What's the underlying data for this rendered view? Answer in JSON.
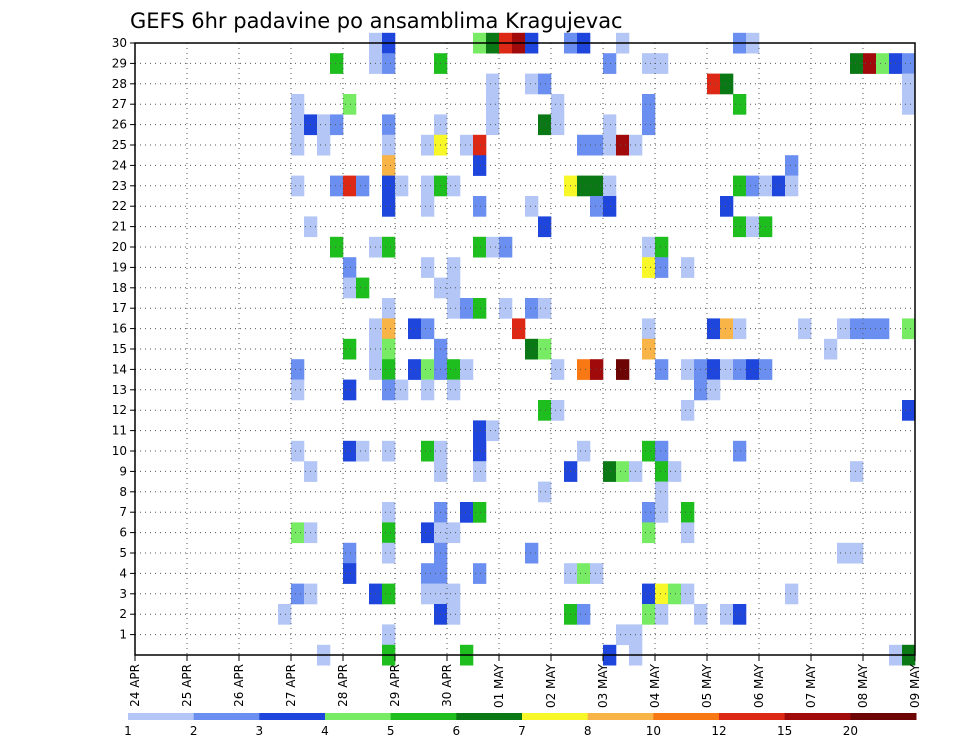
{
  "chart_data": {
    "type": "heatmap",
    "title": "GEFS 6hr padavine po ansamblima Kragujevac",
    "xlabel": "",
    "ylabel": "",
    "x_tick_labels": [
      "24 APR",
      "25 APR",
      "26 APR",
      "27 APR",
      "28 APR",
      "29 APR",
      "30 APR",
      "01 MAY",
      "02 MAY",
      "03 MAY",
      "04 MAY",
      "05 MAY",
      "06 MAY",
      "07 MAY",
      "08 MAY",
      "09 MAY"
    ],
    "y_tick_labels": [
      "1",
      "2",
      "3",
      "4",
      "5",
      "6",
      "7",
      "8",
      "9",
      "10",
      "11",
      "12",
      "13",
      "14",
      "15",
      "16",
      "17",
      "18",
      "19",
      "20",
      "21",
      "22",
      "23",
      "24",
      "25",
      "26",
      "27",
      "28",
      "29",
      "30"
    ],
    "x_range": [
      "24 APR 00Z",
      "09 MAY 00Z"
    ],
    "y_range": [
      0,
      30
    ],
    "steps_per_day": 4,
    "grid": true,
    "colorbar": {
      "position": "bottom",
      "bounds": [
        "1",
        "2",
        "3",
        "4",
        "5",
        "6",
        "7",
        "8",
        "10",
        "12",
        "15",
        "20"
      ],
      "colors": [
        "#b4c6f5",
        "#6b8ff0",
        "#1e46dc",
        "#78eb64",
        "#1ebe1e",
        "#0a7814",
        "#f8f828",
        "#f8b446",
        "#f87814",
        "#dc2814",
        "#a00a0a",
        "#6e0505"
      ]
    },
    "cells": [
      [
        30,
        18,
        "c0"
      ],
      [
        30,
        19,
        "c2"
      ],
      [
        30,
        26,
        "c3"
      ],
      [
        30,
        27,
        "c5"
      ],
      [
        30,
        28,
        "c9"
      ],
      [
        30,
        29,
        "c10"
      ],
      [
        30,
        30,
        "c2"
      ],
      [
        30,
        33,
        "c1"
      ],
      [
        30,
        34,
        "c2"
      ],
      [
        30,
        37,
        "c0"
      ],
      [
        30,
        46,
        "c1"
      ],
      [
        30,
        47,
        "c0"
      ],
      [
        29,
        18,
        "c0"
      ],
      [
        29,
        19,
        "c1"
      ],
      [
        29,
        15,
        "c4"
      ],
      [
        29,
        23,
        "c4"
      ],
      [
        29,
        36,
        "c1"
      ],
      [
        29,
        39,
        "c0"
      ],
      [
        29,
        40,
        "c0"
      ],
      [
        29,
        55,
        "c5"
      ],
      [
        29,
        56,
        "c10"
      ],
      [
        29,
        57,
        "c3"
      ],
      [
        29,
        58,
        "c2"
      ],
      [
        29,
        59,
        "c1"
      ],
      [
        28,
        27,
        "c0"
      ],
      [
        28,
        30,
        "c0"
      ],
      [
        28,
        31,
        "c1"
      ],
      [
        28,
        44,
        "c9"
      ],
      [
        28,
        45,
        "c5"
      ],
      [
        28,
        59,
        "c0"
      ],
      [
        27,
        12,
        "c0"
      ],
      [
        27,
        16,
        "c3"
      ],
      [
        27,
        27,
        "c0"
      ],
      [
        27,
        32,
        "c0"
      ],
      [
        27,
        39,
        "c1"
      ],
      [
        27,
        46,
        "c4"
      ],
      [
        27,
        59,
        "c0"
      ],
      [
        26,
        12,
        "c0"
      ],
      [
        26,
        13,
        "c2"
      ],
      [
        26,
        14,
        "c0"
      ],
      [
        26,
        15,
        "c1"
      ],
      [
        26,
        19,
        "c1"
      ],
      [
        26,
        23,
        "c0"
      ],
      [
        26,
        27,
        "c0"
      ],
      [
        26,
        31,
        "c5"
      ],
      [
        26,
        32,
        "c0"
      ],
      [
        26,
        36,
        "c0"
      ],
      [
        26,
        39,
        "c1"
      ],
      [
        25,
        12,
        "c0"
      ],
      [
        25,
        14,
        "c0"
      ],
      [
        25,
        19,
        "c0"
      ],
      [
        25,
        22,
        "c0"
      ],
      [
        25,
        23,
        "c6"
      ],
      [
        25,
        25,
        "c0"
      ],
      [
        25,
        26,
        "c9"
      ],
      [
        25,
        34,
        "c1"
      ],
      [
        25,
        35,
        "c1"
      ],
      [
        25,
        36,
        "c0"
      ],
      [
        25,
        37,
        "c10"
      ],
      [
        25,
        38,
        "c0"
      ],
      [
        24,
        19,
        "c7"
      ],
      [
        24,
        26,
        "c2"
      ],
      [
        24,
        50,
        "c1"
      ],
      [
        23,
        12,
        "c0"
      ],
      [
        23,
        15,
        "c1"
      ],
      [
        23,
        16,
        "c9"
      ],
      [
        23,
        17,
        "c1"
      ],
      [
        23,
        19,
        "c2"
      ],
      [
        23,
        20,
        "c0"
      ],
      [
        23,
        22,
        "c0"
      ],
      [
        23,
        23,
        "c4"
      ],
      [
        23,
        24,
        "c0"
      ],
      [
        23,
        33,
        "c6"
      ],
      [
        23,
        34,
        "c5"
      ],
      [
        23,
        35,
        "c5"
      ],
      [
        23,
        36,
        "c0"
      ],
      [
        23,
        46,
        "c4"
      ],
      [
        23,
        47,
        "c1"
      ],
      [
        23,
        48,
        "c0"
      ],
      [
        23,
        49,
        "c2"
      ],
      [
        23,
        50,
        "c0"
      ],
      [
        22,
        19,
        "c2"
      ],
      [
        22,
        22,
        "c0"
      ],
      [
        22,
        26,
        "c1"
      ],
      [
        22,
        30,
        "c0"
      ],
      [
        22,
        35,
        "c1"
      ],
      [
        22,
        36,
        "c2"
      ],
      [
        22,
        45,
        "c2"
      ],
      [
        21,
        13,
        "c0"
      ],
      [
        21,
        31,
        "c2"
      ],
      [
        21,
        46,
        "c4"
      ],
      [
        21,
        47,
        "c0"
      ],
      [
        21,
        48,
        "c4"
      ],
      [
        20,
        15,
        "c4"
      ],
      [
        20,
        18,
        "c0"
      ],
      [
        20,
        19,
        "c4"
      ],
      [
        20,
        26,
        "c4"
      ],
      [
        20,
        27,
        "c0"
      ],
      [
        20,
        28,
        "c1"
      ],
      [
        20,
        39,
        "c0"
      ],
      [
        20,
        40,
        "c4"
      ],
      [
        19,
        16,
        "c1"
      ],
      [
        19,
        22,
        "c0"
      ],
      [
        19,
        24,
        "c0"
      ],
      [
        19,
        39,
        "c6"
      ],
      [
        19,
        40,
        "c1"
      ],
      [
        19,
        42,
        "c0"
      ],
      [
        18,
        16,
        "c0"
      ],
      [
        18,
        17,
        "c4"
      ],
      [
        18,
        23,
        "c0"
      ],
      [
        18,
        24,
        "c0"
      ],
      [
        17,
        19,
        "c0"
      ],
      [
        17,
        24,
        "c0"
      ],
      [
        17,
        25,
        "c1"
      ],
      [
        17,
        26,
        "c4"
      ],
      [
        17,
        28,
        "c0"
      ],
      [
        17,
        30,
        "c1"
      ],
      [
        17,
        31,
        "c0"
      ],
      [
        16,
        18,
        "c0"
      ],
      [
        16,
        19,
        "c7"
      ],
      [
        16,
        21,
        "c2"
      ],
      [
        16,
        22,
        "c1"
      ],
      [
        16,
        29,
        "c9"
      ],
      [
        16,
        39,
        "c0"
      ],
      [
        16,
        44,
        "c2"
      ],
      [
        16,
        45,
        "c7"
      ],
      [
        16,
        46,
        "c0"
      ],
      [
        16,
        51,
        "c0"
      ],
      [
        16,
        54,
        "c0"
      ],
      [
        16,
        55,
        "c1"
      ],
      [
        16,
        56,
        "c1"
      ],
      [
        16,
        57,
        "c1"
      ],
      [
        16,
        59,
        "c3"
      ],
      [
        15,
        16,
        "c4"
      ],
      [
        15,
        18,
        "c0"
      ],
      [
        15,
        19,
        "c3"
      ],
      [
        15,
        23,
        "c1"
      ],
      [
        15,
        30,
        "c5"
      ],
      [
        15,
        31,
        "c3"
      ],
      [
        15,
        39,
        "c7"
      ],
      [
        15,
        53,
        "c0"
      ],
      [
        14,
        12,
        "c1"
      ],
      [
        14,
        18,
        "c0"
      ],
      [
        14,
        19,
        "c4"
      ],
      [
        14,
        21,
        "c2"
      ],
      [
        14,
        22,
        "c3"
      ],
      [
        14,
        23,
        "c1"
      ],
      [
        14,
        24,
        "c4"
      ],
      [
        14,
        25,
        "c0"
      ],
      [
        14,
        32,
        "c0"
      ],
      [
        14,
        34,
        "c8"
      ],
      [
        14,
        35,
        "c10"
      ],
      [
        14,
        37,
        "c11"
      ],
      [
        14,
        40,
        "c1"
      ],
      [
        14,
        42,
        "c0"
      ],
      [
        14,
        43,
        "c1"
      ],
      [
        14,
        44,
        "c2"
      ],
      [
        14,
        45,
        "c0"
      ],
      [
        14,
        46,
        "c1"
      ],
      [
        14,
        47,
        "c2"
      ],
      [
        14,
        48,
        "c1"
      ],
      [
        13,
        12,
        "c0"
      ],
      [
        13,
        16,
        "c2"
      ],
      [
        13,
        19,
        "c1"
      ],
      [
        13,
        20,
        "c0"
      ],
      [
        13,
        22,
        "c0"
      ],
      [
        13,
        24,
        "c0"
      ],
      [
        13,
        43,
        "c1"
      ],
      [
        13,
        44,
        "c0"
      ],
      [
        12,
        31,
        "c4"
      ],
      [
        12,
        32,
        "c0"
      ],
      [
        12,
        42,
        "c0"
      ],
      [
        12,
        59,
        "c2"
      ],
      [
        11,
        26,
        "c2"
      ],
      [
        11,
        27,
        "c0"
      ],
      [
        10,
        12,
        "c0"
      ],
      [
        10,
        16,
        "c2"
      ],
      [
        10,
        17,
        "c0"
      ],
      [
        10,
        19,
        "c0"
      ],
      [
        10,
        22,
        "c4"
      ],
      [
        10,
        23,
        "c0"
      ],
      [
        10,
        26,
        "c2"
      ],
      [
        10,
        34,
        "c0"
      ],
      [
        10,
        39,
        "c4"
      ],
      [
        10,
        40,
        "c1"
      ],
      [
        10,
        46,
        "c1"
      ],
      [
        9,
        13,
        "c0"
      ],
      [
        9,
        23,
        "c0"
      ],
      [
        9,
        26,
        "c0"
      ],
      [
        9,
        33,
        "c2"
      ],
      [
        9,
        36,
        "c5"
      ],
      [
        9,
        37,
        "c3"
      ],
      [
        9,
        38,
        "c0"
      ],
      [
        9,
        40,
        "c4"
      ],
      [
        9,
        41,
        "c0"
      ],
      [
        9,
        55,
        "c0"
      ],
      [
        8,
        31,
        "c0"
      ],
      [
        8,
        40,
        "c0"
      ],
      [
        7,
        19,
        "c0"
      ],
      [
        7,
        23,
        "c1"
      ],
      [
        7,
        25,
        "c2"
      ],
      [
        7,
        26,
        "c4"
      ],
      [
        7,
        39,
        "c1"
      ],
      [
        7,
        40,
        "c0"
      ],
      [
        7,
        42,
        "c4"
      ],
      [
        6,
        12,
        "c3"
      ],
      [
        6,
        13,
        "c0"
      ],
      [
        6,
        19,
        "c4"
      ],
      [
        6,
        22,
        "c2"
      ],
      [
        6,
        23,
        "c0"
      ],
      [
        6,
        24,
        "c0"
      ],
      [
        6,
        39,
        "c3"
      ],
      [
        6,
        42,
        "c0"
      ],
      [
        5,
        16,
        "c1"
      ],
      [
        5,
        19,
        "c0"
      ],
      [
        5,
        23,
        "c1"
      ],
      [
        5,
        30,
        "c1"
      ],
      [
        5,
        54,
        "c0"
      ],
      [
        5,
        55,
        "c0"
      ],
      [
        4,
        16,
        "c2"
      ],
      [
        4,
        22,
        "c1"
      ],
      [
        4,
        23,
        "c1"
      ],
      [
        4,
        26,
        "c1"
      ],
      [
        4,
        33,
        "c0"
      ],
      [
        4,
        34,
        "c3"
      ],
      [
        4,
        35,
        "c0"
      ],
      [
        3,
        12,
        "c1"
      ],
      [
        3,
        13,
        "c0"
      ],
      [
        3,
        18,
        "c2"
      ],
      [
        3,
        19,
        "c4"
      ],
      [
        3,
        22,
        "c0"
      ],
      [
        3,
        23,
        "c0"
      ],
      [
        3,
        24,
        "c0"
      ],
      [
        3,
        39,
        "c2"
      ],
      [
        3,
        40,
        "c6"
      ],
      [
        3,
        41,
        "c3"
      ],
      [
        3,
        42,
        "c0"
      ],
      [
        3,
        50,
        "c0"
      ],
      [
        2,
        11,
        "c0"
      ],
      [
        2,
        23,
        "c2"
      ],
      [
        2,
        24,
        "c0"
      ],
      [
        2,
        33,
        "c4"
      ],
      [
        2,
        34,
        "c1"
      ],
      [
        2,
        39,
        "c3"
      ],
      [
        2,
        40,
        "c0"
      ],
      [
        2,
        43,
        "c0"
      ],
      [
        2,
        45,
        "c0"
      ],
      [
        2,
        46,
        "c2"
      ],
      [
        1,
        37,
        "c0"
      ],
      [
        1,
        38,
        "c0"
      ],
      [
        1,
        19,
        "c0"
      ],
      [
        0,
        14,
        "c0"
      ],
      [
        0,
        19,
        "c4"
      ],
      [
        0,
        25,
        "c4"
      ],
      [
        0,
        36,
        "c2"
      ],
      [
        0,
        38,
        "c0"
      ],
      [
        0,
        58,
        "c0"
      ],
      [
        0,
        59,
        "c5"
      ]
    ]
  }
}
